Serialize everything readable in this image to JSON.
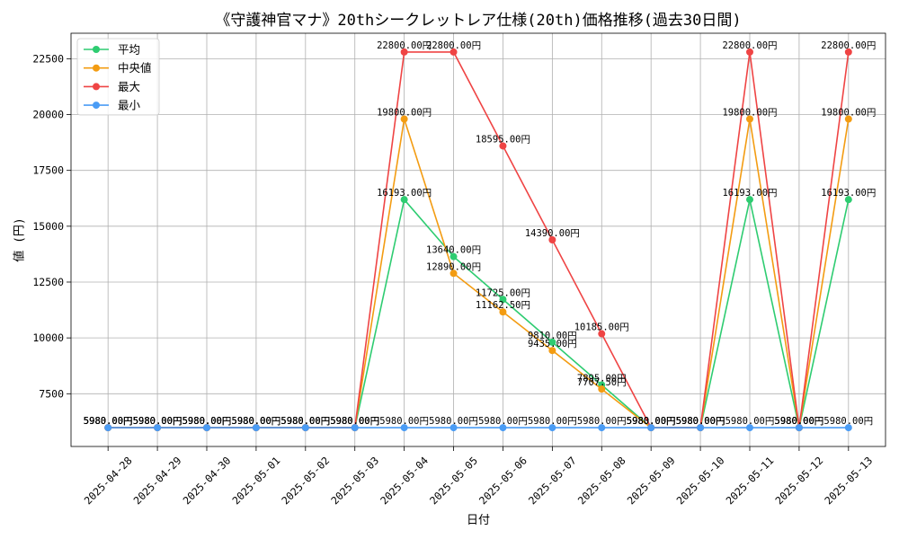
{
  "chart_data": {
    "type": "line",
    "title": "《守護神官マナ》20thシークレットレア仕様(20th)価格推移(過去30日間)",
    "xlabel": "日付",
    "ylabel": "値 (円)",
    "categories": [
      "2025-04-28",
      "2025-04-29",
      "2025-04-30",
      "2025-05-01",
      "2025-05-02",
      "2025-05-03",
      "2025-05-04",
      "2025-05-05",
      "2025-05-06",
      "2025-05-07",
      "2025-05-08",
      "2025-05-09",
      "2025-05-10",
      "2025-05-11",
      "2025-05-12",
      "2025-05-13"
    ],
    "ylim": [
      5139,
      23641
    ],
    "yticks": [
      7500,
      10000,
      12500,
      15000,
      17500,
      20000,
      22500
    ],
    "grid": true,
    "legend_position": "top-left",
    "series": [
      {
        "name": "平均",
        "color": "#2ecc71",
        "values": [
          5980,
          5980,
          5980,
          5980,
          5980,
          5980,
          16193,
          13640,
          11725,
          9810,
          7895,
          5980,
          5980,
          16193,
          5980,
          16193
        ],
        "labels": [
          "5980.00円",
          "5980.00円",
          "5980.00円",
          "5980.00円",
          "5980.00円",
          "5980.00円",
          "16193.00円",
          "13640.00円",
          "11725.00円",
          "9810.00円",
          "7895.00円",
          "5980.00円",
          "5980.00円",
          "16193.00円",
          "5980.00円",
          "16193.00円"
        ]
      },
      {
        "name": "中央値",
        "color": "#f39c12",
        "values": [
          5980,
          5980,
          5980,
          5980,
          5980,
          5980,
          19800,
          12890,
          11162.5,
          9435,
          7707.5,
          5980,
          5980,
          19800,
          5980,
          19800
        ],
        "labels": [
          "5980.00円",
          "5980.00円",
          "5980.00円",
          "5980.00円",
          "5980.00円",
          "5980.00円",
          "19800.00円",
          "12890.00円",
          "11162.50円",
          "9435.00円",
          "7707.50円",
          "5980.00円",
          "5980.00円",
          "19800.00円",
          "5980.00円",
          "19800.00円"
        ]
      },
      {
        "name": "最大",
        "color": "#ef4444",
        "values": [
          5980,
          5980,
          5980,
          5980,
          5980,
          5980,
          22800,
          22800,
          18595,
          14390,
          10185,
          5980,
          5980,
          22800,
          5980,
          22800
        ],
        "labels": [
          "5980.00円",
          "5980.00円",
          "5980.00円",
          "5980.00円",
          "5980.00円",
          "5980.00円",
          "22800.00円",
          "22800.00円",
          "18595.00円",
          "14390.00円",
          "10185.00円",
          "5980.00円",
          "5980.00円",
          "22800.00円",
          "5980.00円",
          "22800.00円"
        ]
      },
      {
        "name": "最小",
        "color": "#4a9cf5",
        "values": [
          5980,
          5980,
          5980,
          5980,
          5980,
          5980,
          5980,
          5980,
          5980,
          5980,
          5980,
          5980,
          5980,
          5980,
          5980,
          5980
        ],
        "labels": [
          "5980.00円",
          "5980.00円",
          "5980.00円",
          "5980.00円",
          "5980.00円",
          "5980.00円",
          "5980.00円",
          "5980.00円",
          "5980.00円",
          "5980.00円",
          "5980.00円",
          "5980.00円",
          "5980.00円",
          "5980.00円",
          "5980.00円",
          "5980.00円"
        ]
      }
    ]
  }
}
